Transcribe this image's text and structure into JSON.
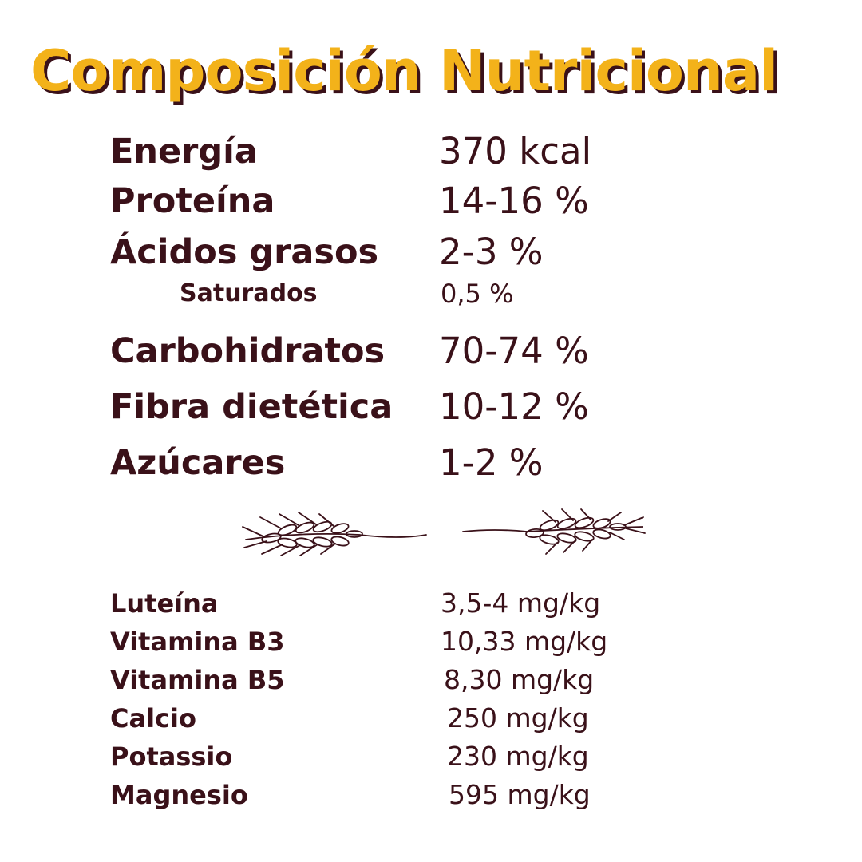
{
  "title": "Composición Nutricional",
  "colors": {
    "accent": "#f3b21a",
    "text": "#3a1119",
    "background": "#ffffff"
  },
  "nutrients": [
    {
      "label": "Energía",
      "value": "370 kcal"
    },
    {
      "label": "Proteína",
      "value": "14-16 %"
    },
    {
      "label": "Ácidos grasos",
      "value": "2-3 %"
    },
    {
      "label": "Saturados",
      "value": "0,5 %"
    },
    {
      "label": "Carbohidratos",
      "value": "70-74 %"
    },
    {
      "label": "Fibra dietética",
      "value": "10-12 %"
    },
    {
      "label": "Azúcares",
      "value": "1-2 %"
    }
  ],
  "divider_icon": "wheat-ears-icon",
  "micronutrients": [
    {
      "label": "Luteína",
      "value": "3,5-4 mg/kg"
    },
    {
      "label": "Vitamina B3",
      "value": "10,33 mg/kg"
    },
    {
      "label": "Vitamina B5",
      "value": "8,30 mg/kg"
    },
    {
      "label": "Calcio",
      "value": "250 mg/kg"
    },
    {
      "label": "Potassio",
      "value": "230 mg/kg"
    },
    {
      "label": "Magnesio",
      "value": "595 mg/kg"
    }
  ]
}
